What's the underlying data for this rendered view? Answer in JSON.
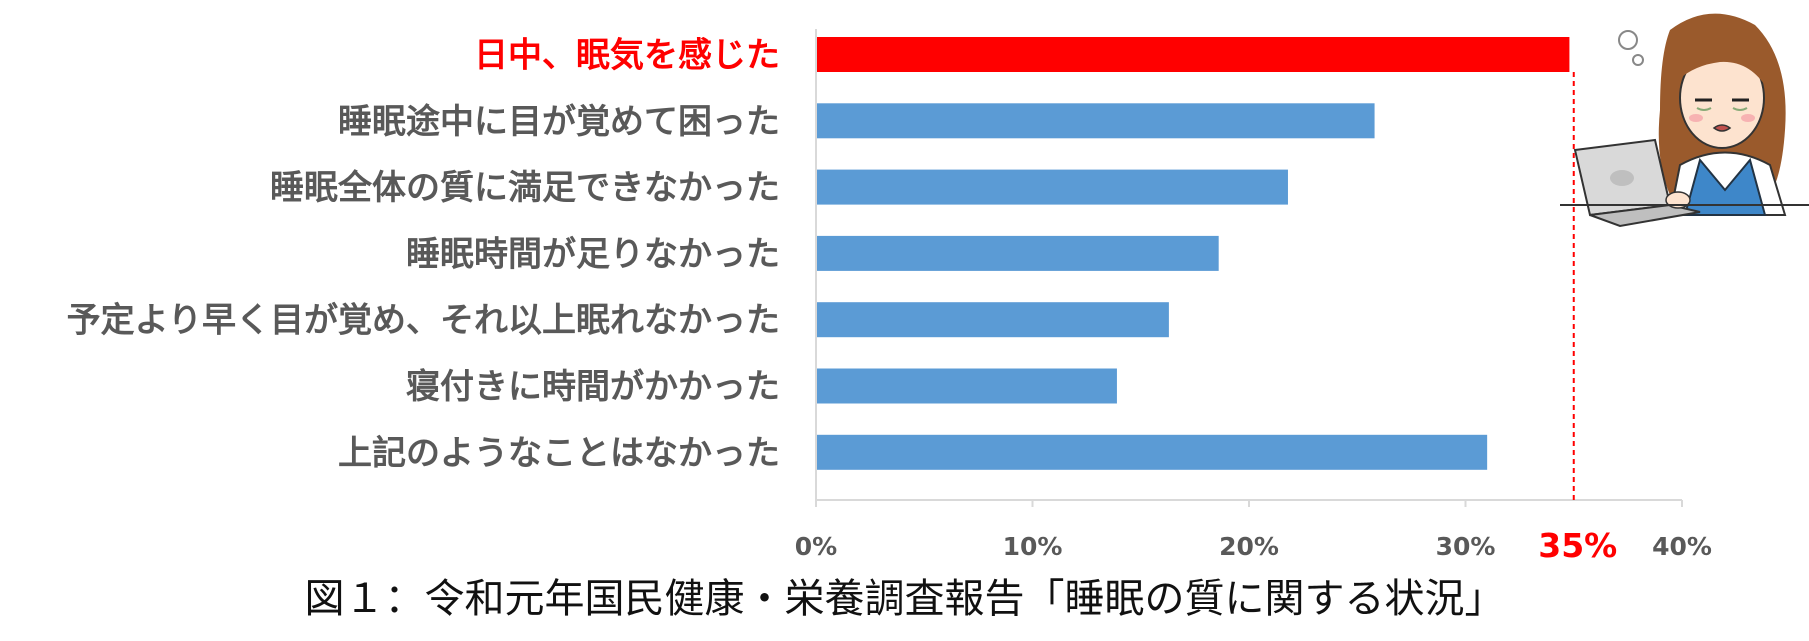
{
  "caption": "図１：令和元年国民健康・栄養調査報告「睡眠の質に関する状況」",
  "colors": {
    "highlight": "#ff0000",
    "bar": "#5b9bd5",
    "label": "#595959",
    "axis": "#d9d9d9"
  },
  "chart_data": {
    "type": "bar",
    "orientation": "horizontal",
    "categories": [
      "日中、眠気を感じた",
      "睡眠途中に目が覚めて困った",
      "睡眠全体の質に満足できなかった",
      "睡眠時間が足りなかった",
      "予定より早く目が覚め、それ以上眠れなかった",
      "寝付きに時間がかかった",
      "上記のようなことはなかった"
    ],
    "values": [
      34.8,
      25.8,
      21.8,
      18.6,
      16.3,
      13.9,
      31.0
    ],
    "highlight_index": 0,
    "xlim": [
      0,
      40
    ],
    "xticks": [
      "0%",
      "10%",
      "20%",
      "30%",
      "40%"
    ],
    "xtick_values": [
      0,
      10,
      20,
      30,
      40
    ],
    "reference_line": {
      "value": 35,
      "label": "35%"
    },
    "grid": false
  },
  "illustration": {
    "icon": "tired-woman-at-laptop-icon"
  }
}
